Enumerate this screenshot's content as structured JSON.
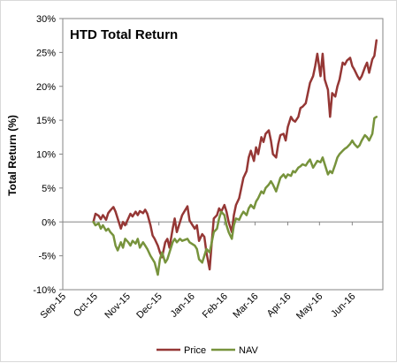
{
  "chart_data": {
    "type": "line",
    "title": "HTD Total Return",
    "xlabel": "",
    "ylabel": "Total Return (%)",
    "ylim": [
      -10,
      30
    ],
    "y_ticks": [
      "-10%",
      "-5%",
      "0%",
      "5%",
      "10%",
      "15%",
      "20%",
      "25%",
      "30%"
    ],
    "y_tick_values": [
      -10,
      -5,
      0,
      5,
      10,
      15,
      20,
      25,
      30
    ],
    "x_range": [
      "2015-09-01",
      "2016-06-30"
    ],
    "x_ticks": [
      {
        "label": "Sep-15",
        "date": "2015-09-01"
      },
      {
        "label": "Oct-15",
        "date": "2015-10-01"
      },
      {
        "label": "Nov-15",
        "date": "2015-11-01"
      },
      {
        "label": "Dec-15",
        "date": "2015-12-01"
      },
      {
        "label": "Jan-16",
        "date": "2016-01-01"
      },
      {
        "label": "Feb-16",
        "date": "2016-02-01"
      },
      {
        "label": "Mar-16",
        "date": "2016-03-01"
      },
      {
        "label": "Apr-16",
        "date": "2016-04-01"
      },
      {
        "label": "May-16",
        "date": "2016-05-01"
      },
      {
        "label": "Jun-16",
        "date": "2016-06-01"
      }
    ],
    "grid": false,
    "legend_position": "bottom",
    "series": [
      {
        "name": "Price",
        "color": "#953735",
        "points": [
          [
            "2015-09-30",
            0
          ],
          [
            "2015-10-02",
            1.2
          ],
          [
            "2015-10-05",
            0.9
          ],
          [
            "2015-10-07",
            0.4
          ],
          [
            "2015-10-09",
            1.0
          ],
          [
            "2015-10-12",
            0.3
          ],
          [
            "2015-10-14",
            1.3
          ],
          [
            "2015-10-16",
            1.7
          ],
          [
            "2015-10-19",
            2.2
          ],
          [
            "2015-10-21",
            1.5
          ],
          [
            "2015-10-23",
            0.5
          ],
          [
            "2015-10-26",
            -1.0
          ],
          [
            "2015-10-28",
            0.0
          ],
          [
            "2015-10-30",
            -0.5
          ],
          [
            "2015-11-02",
            0.5
          ],
          [
            "2015-11-04",
            1.2
          ],
          [
            "2015-11-06",
            0.8
          ],
          [
            "2015-11-09",
            1.5
          ],
          [
            "2015-11-11",
            1.0
          ],
          [
            "2015-11-13",
            1.6
          ],
          [
            "2015-11-16",
            1.3
          ],
          [
            "2015-11-18",
            1.8
          ],
          [
            "2015-11-20",
            1.2
          ],
          [
            "2015-11-23",
            -0.5
          ],
          [
            "2015-11-25",
            -2.0
          ],
          [
            "2015-11-27",
            -2.5
          ],
          [
            "2015-11-30",
            -3.5
          ],
          [
            "2015-12-02",
            -4.5
          ],
          [
            "2015-12-04",
            -5.2
          ],
          [
            "2015-12-07",
            -3.0
          ],
          [
            "2015-12-09",
            -2.5
          ],
          [
            "2015-12-11",
            -3.8
          ],
          [
            "2015-12-14",
            -1.0
          ],
          [
            "2015-12-16",
            0.5
          ],
          [
            "2015-12-18",
            -1.5
          ],
          [
            "2015-12-21",
            0.0
          ],
          [
            "2015-12-23",
            1.0
          ],
          [
            "2015-12-28",
            2.3
          ],
          [
            "2015-12-30",
            0.2
          ],
          [
            "2016-01-04",
            -1.0
          ],
          [
            "2016-01-06",
            -0.5
          ],
          [
            "2016-01-08",
            -2.8
          ],
          [
            "2016-01-11",
            -1.8
          ],
          [
            "2016-01-13",
            -2.2
          ],
          [
            "2016-01-15",
            -4.5
          ],
          [
            "2016-01-18",
            -7.0
          ],
          [
            "2016-01-20",
            -3.0
          ],
          [
            "2016-01-22",
            0.5
          ],
          [
            "2016-01-25",
            1.0
          ],
          [
            "2016-01-27",
            2.0
          ],
          [
            "2016-01-29",
            1.5
          ],
          [
            "2016-02-01",
            2.5
          ],
          [
            "2016-02-03",
            1.5
          ],
          [
            "2016-02-05",
            0.0
          ],
          [
            "2016-02-08",
            -1.5
          ],
          [
            "2016-02-10",
            1.0
          ],
          [
            "2016-02-12",
            2.5
          ],
          [
            "2016-02-15",
            3.5
          ],
          [
            "2016-02-17",
            5.0
          ],
          [
            "2016-02-19",
            6.5
          ],
          [
            "2016-02-22",
            7.5
          ],
          [
            "2016-02-24",
            9.5
          ],
          [
            "2016-02-26",
            10.5
          ],
          [
            "2016-02-29",
            9.0
          ],
          [
            "2016-03-02",
            11.0
          ],
          [
            "2016-03-04",
            10.0
          ],
          [
            "2016-03-07",
            12.5
          ],
          [
            "2016-03-09",
            11.8
          ],
          [
            "2016-03-11",
            13.0
          ],
          [
            "2016-03-14",
            13.5
          ],
          [
            "2016-03-16",
            12.0
          ],
          [
            "2016-03-18",
            10.0
          ],
          [
            "2016-03-21",
            9.5
          ],
          [
            "2016-03-23",
            11.5
          ],
          [
            "2016-03-25",
            12.8
          ],
          [
            "2016-03-28",
            13.0
          ],
          [
            "2016-03-30",
            12.0
          ],
          [
            "2016-04-01",
            14.0
          ],
          [
            "2016-04-04",
            15.5
          ],
          [
            "2016-04-06",
            15.0
          ],
          [
            "2016-04-08",
            14.8
          ],
          [
            "2016-04-11",
            15.5
          ],
          [
            "2016-04-13",
            16.8
          ],
          [
            "2016-04-15",
            17.0
          ],
          [
            "2016-04-18",
            17.5
          ],
          [
            "2016-04-20",
            19.0
          ],
          [
            "2016-04-22",
            20.5
          ],
          [
            "2016-04-25",
            21.5
          ],
          [
            "2016-04-27",
            23.0
          ],
          [
            "2016-04-29",
            24.8
          ],
          [
            "2016-05-02",
            21.5
          ],
          [
            "2016-05-04",
            24.8
          ],
          [
            "2016-05-06",
            21.0
          ],
          [
            "2016-05-09",
            19.5
          ],
          [
            "2016-05-11",
            15.5
          ],
          [
            "2016-05-13",
            19.0
          ],
          [
            "2016-05-16",
            18.5
          ],
          [
            "2016-05-18",
            20.0
          ],
          [
            "2016-05-20",
            21.0
          ],
          [
            "2016-05-23",
            23.5
          ],
          [
            "2016-05-25",
            23.2
          ],
          [
            "2016-05-27",
            23.8
          ],
          [
            "2016-05-30",
            24.2
          ],
          [
            "2016-06-01",
            23.0
          ],
          [
            "2016-06-03",
            22.5
          ],
          [
            "2016-06-06",
            21.5
          ],
          [
            "2016-06-08",
            21.0
          ],
          [
            "2016-06-10",
            21.5
          ],
          [
            "2016-06-13",
            22.8
          ],
          [
            "2016-06-15",
            23.5
          ],
          [
            "2016-06-17",
            22.0
          ],
          [
            "2016-06-20",
            24.0
          ],
          [
            "2016-06-22",
            24.5
          ],
          [
            "2016-06-24",
            26.8
          ]
        ]
      },
      {
        "name": "NAV",
        "color": "#77933c",
        "points": [
          [
            "2015-09-30",
            0
          ],
          [
            "2015-10-02",
            -0.5
          ],
          [
            "2015-10-05",
            -0.2
          ],
          [
            "2015-10-07",
            -1.0
          ],
          [
            "2015-10-09",
            -0.5
          ],
          [
            "2015-10-12",
            -1.3
          ],
          [
            "2015-10-14",
            -1.0
          ],
          [
            "2015-10-16",
            -1.5
          ],
          [
            "2015-10-19",
            -2.0
          ],
          [
            "2015-10-21",
            -3.5
          ],
          [
            "2015-10-23",
            -4.2
          ],
          [
            "2015-10-26",
            -3.0
          ],
          [
            "2015-10-28",
            -3.8
          ],
          [
            "2015-10-30",
            -2.5
          ],
          [
            "2015-11-02",
            -3.0
          ],
          [
            "2015-11-04",
            -3.5
          ],
          [
            "2015-11-06",
            -2.8
          ],
          [
            "2015-11-09",
            -3.2
          ],
          [
            "2015-11-11",
            -2.5
          ],
          [
            "2015-11-13",
            -3.8
          ],
          [
            "2015-11-16",
            -3.0
          ],
          [
            "2015-11-18",
            -3.5
          ],
          [
            "2015-11-20",
            -4.0
          ],
          [
            "2015-11-23",
            -5.0
          ],
          [
            "2015-11-25",
            -5.5
          ],
          [
            "2015-11-27",
            -6.0
          ],
          [
            "2015-11-30",
            -7.8
          ],
          [
            "2015-12-02",
            -5.5
          ],
          [
            "2015-12-04",
            -4.5
          ],
          [
            "2015-12-07",
            -6.0
          ],
          [
            "2015-12-09",
            -5.5
          ],
          [
            "2015-12-11",
            -4.5
          ],
          [
            "2015-12-14",
            -3.0
          ],
          [
            "2015-12-16",
            -2.5
          ],
          [
            "2015-12-18",
            -3.0
          ],
          [
            "2015-12-21",
            -2.5
          ],
          [
            "2015-12-23",
            -2.8
          ],
          [
            "2015-12-28",
            -2.5
          ],
          [
            "2015-12-30",
            -3.0
          ],
          [
            "2016-01-04",
            -3.5
          ],
          [
            "2016-01-06",
            -4.0
          ],
          [
            "2016-01-08",
            -5.5
          ],
          [
            "2016-01-11",
            -6.0
          ],
          [
            "2016-01-13",
            -5.0
          ],
          [
            "2016-01-15",
            -4.0
          ],
          [
            "2016-01-18",
            -4.5
          ],
          [
            "2016-01-20",
            -3.0
          ],
          [
            "2016-01-22",
            -1.5
          ],
          [
            "2016-01-25",
            -1.0
          ],
          [
            "2016-01-27",
            0.5
          ],
          [
            "2016-01-29",
            1.5
          ],
          [
            "2016-02-01",
            1.0
          ],
          [
            "2016-02-03",
            -0.5
          ],
          [
            "2016-02-05",
            -1.5
          ],
          [
            "2016-02-08",
            -2.5
          ],
          [
            "2016-02-10",
            -0.5
          ],
          [
            "2016-02-12",
            0.5
          ],
          [
            "2016-02-15",
            0.3
          ],
          [
            "2016-02-17",
            1.0
          ],
          [
            "2016-02-19",
            1.5
          ],
          [
            "2016-02-22",
            1.0
          ],
          [
            "2016-02-24",
            2.0
          ],
          [
            "2016-02-26",
            2.5
          ],
          [
            "2016-02-29",
            2.0
          ],
          [
            "2016-03-02",
            3.0
          ],
          [
            "2016-03-04",
            3.5
          ],
          [
            "2016-03-07",
            4.5
          ],
          [
            "2016-03-09",
            4.2
          ],
          [
            "2016-03-11",
            5.0
          ],
          [
            "2016-03-14",
            5.5
          ],
          [
            "2016-03-16",
            6.0
          ],
          [
            "2016-03-18",
            5.5
          ],
          [
            "2016-03-21",
            4.5
          ],
          [
            "2016-03-23",
            5.5
          ],
          [
            "2016-03-25",
            6.5
          ],
          [
            "2016-03-28",
            7.0
          ],
          [
            "2016-03-30",
            6.5
          ],
          [
            "2016-04-01",
            7.0
          ],
          [
            "2016-04-04",
            6.8
          ],
          [
            "2016-04-06",
            7.5
          ],
          [
            "2016-04-08",
            7.3
          ],
          [
            "2016-04-11",
            8.0
          ],
          [
            "2016-04-13",
            8.2
          ],
          [
            "2016-04-15",
            8.5
          ],
          [
            "2016-04-18",
            8.3
          ],
          [
            "2016-04-20",
            8.8
          ],
          [
            "2016-04-22",
            9.2
          ],
          [
            "2016-04-25",
            8.0
          ],
          [
            "2016-04-27",
            8.5
          ],
          [
            "2016-04-29",
            9.0
          ],
          [
            "2016-05-02",
            8.8
          ],
          [
            "2016-05-04",
            9.5
          ],
          [
            "2016-05-06",
            8.5
          ],
          [
            "2016-05-09",
            7.0
          ],
          [
            "2016-05-11",
            7.5
          ],
          [
            "2016-05-13",
            7.2
          ],
          [
            "2016-05-16",
            8.5
          ],
          [
            "2016-05-18",
            9.5
          ],
          [
            "2016-05-20",
            10.0
          ],
          [
            "2016-05-23",
            10.5
          ],
          [
            "2016-05-25",
            10.8
          ],
          [
            "2016-05-27",
            11.0
          ],
          [
            "2016-05-30",
            11.5
          ],
          [
            "2016-06-01",
            12.0
          ],
          [
            "2016-06-03",
            11.5
          ],
          [
            "2016-06-06",
            11.0
          ],
          [
            "2016-06-08",
            11.3
          ],
          [
            "2016-06-10",
            12.0
          ],
          [
            "2016-06-13",
            12.8
          ],
          [
            "2016-06-15",
            12.5
          ],
          [
            "2016-06-17",
            12.0
          ],
          [
            "2016-06-20",
            13.0
          ],
          [
            "2016-06-22",
            15.3
          ],
          [
            "2016-06-24",
            15.5
          ]
        ]
      }
    ]
  }
}
